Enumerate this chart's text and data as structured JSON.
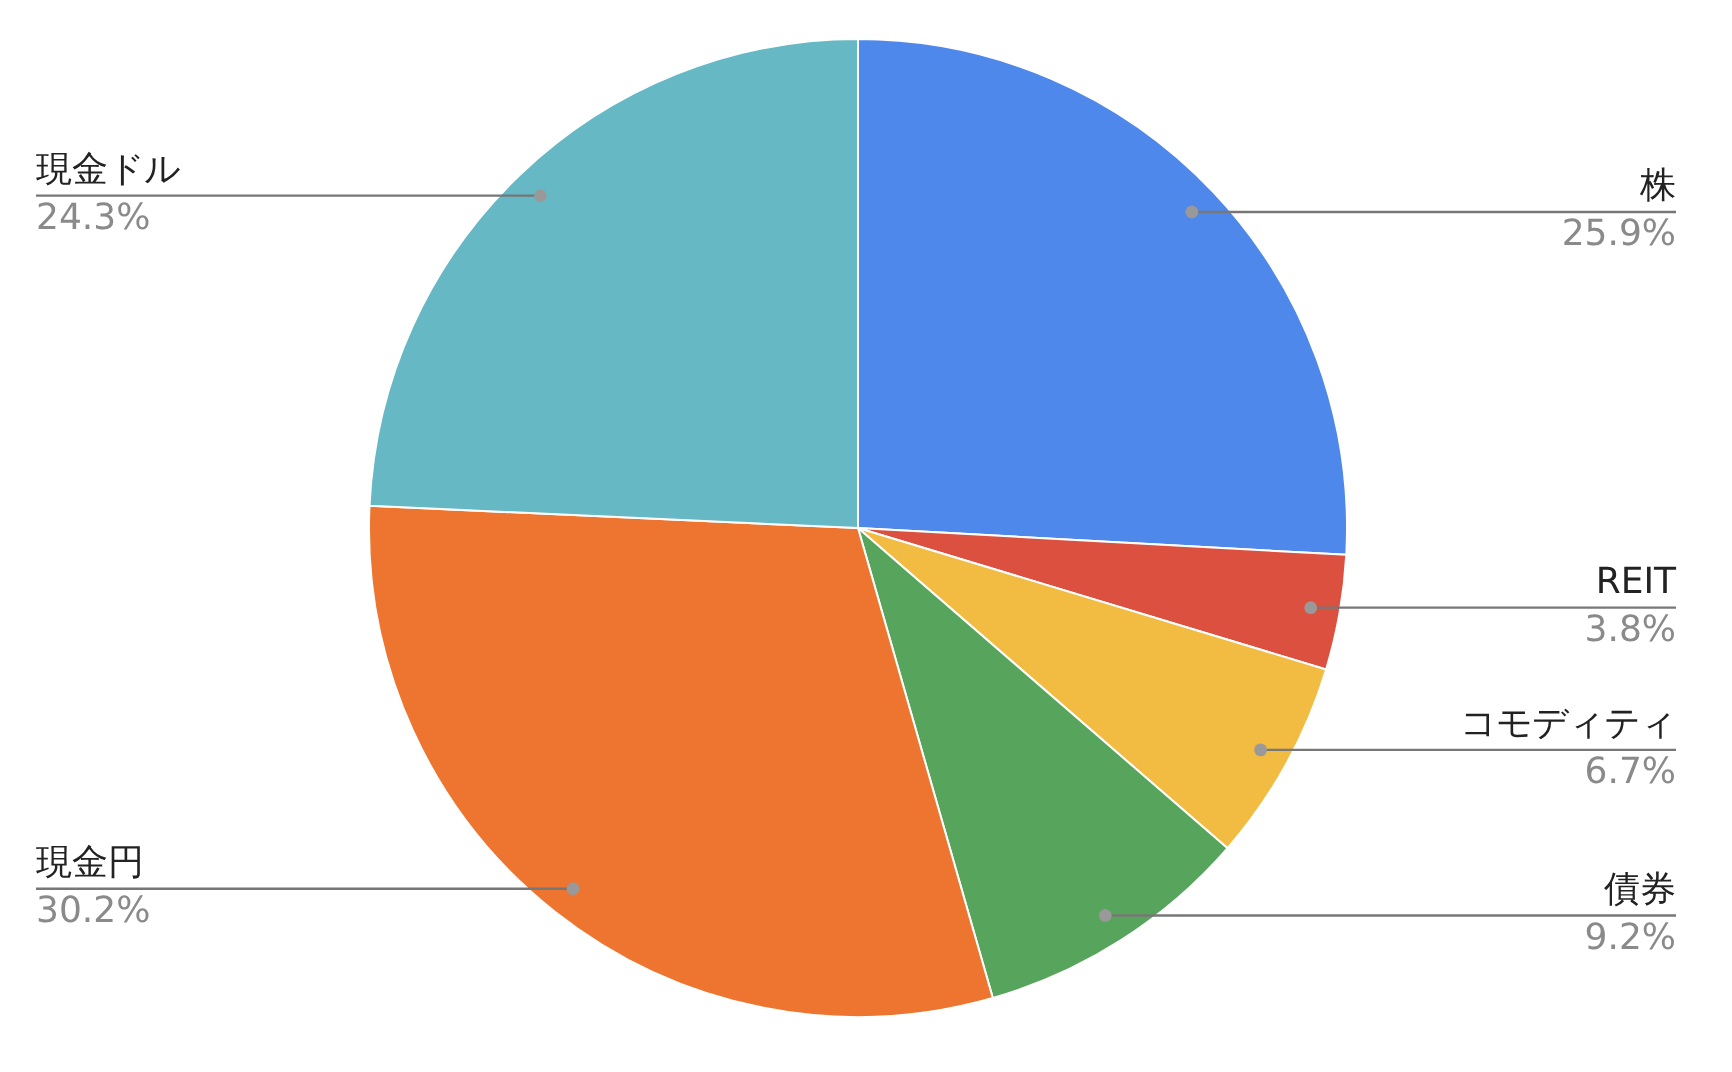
{
  "chart_data": {
    "type": "pie",
    "categories": [
      "株",
      "REIT",
      "コモディティ",
      "債券",
      "現金円",
      "現金ドル"
    ],
    "values": [
      25.9,
      3.8,
      6.7,
      9.2,
      30.2,
      24.3
    ],
    "value_labels": [
      "25.9%",
      "3.8%",
      "6.7%",
      "9.2%",
      "30.2%",
      "24.3%"
    ],
    "colors": [
      "#4f88eb",
      "#dc5040",
      "#f2bb41",
      "#57a55c",
      "#ed7530",
      "#66b9c4"
    ],
    "legend": false
  }
}
